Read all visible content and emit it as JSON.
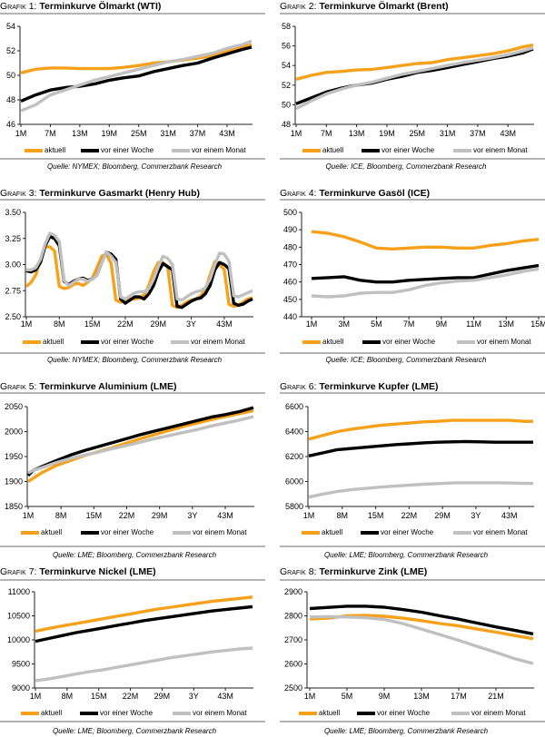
{
  "chart_data": [
    {
      "type": "line",
      "figure_label": "Grafik",
      "figure_number": "1:",
      "title": "Terminkurve Ölmarkt (WTI)",
      "source": "Quelle: NYMEX; Bloomberg, Commerzbank Research",
      "xlabel": "",
      "ylabel": "",
      "grid": false,
      "legend": "bottom",
      "ylim": [
        46,
        54
      ],
      "yticks": [
        "46",
        "48",
        "50",
        "52",
        "54"
      ],
      "x_range": [
        1,
        48
      ],
      "xticks": [
        "1M",
        "7M",
        "13M",
        "19M",
        "25M",
        "31M",
        "37M",
        "43M"
      ],
      "xtick_positions": [
        1,
        7,
        13,
        19,
        25,
        31,
        37,
        43
      ],
      "x": [
        1,
        4,
        7,
        10,
        13,
        16,
        19,
        22,
        25,
        28,
        31,
        34,
        37,
        40,
        43,
        46,
        48
      ],
      "series": [
        {
          "name": "aktuell",
          "color": "#f7a11a",
          "values": [
            50.2,
            50.5,
            50.6,
            50.6,
            50.55,
            50.55,
            50.55,
            50.65,
            50.8,
            51.0,
            51.1,
            51.25,
            51.4,
            51.6,
            51.95,
            52.3,
            52.5
          ]
        },
        {
          "name": "vor einer Woche",
          "color": "#000000",
          "values": [
            47.9,
            48.4,
            48.8,
            49.0,
            49.1,
            49.3,
            49.6,
            49.8,
            49.95,
            50.3,
            50.55,
            50.8,
            51.0,
            51.4,
            51.75,
            52.1,
            52.3
          ]
        },
        {
          "name": "vor einem Monat",
          "color": "#c0c0c0",
          "values": [
            47.1,
            47.6,
            48.4,
            48.8,
            49.2,
            49.6,
            49.9,
            50.2,
            50.5,
            50.8,
            51.1,
            51.3,
            51.55,
            51.8,
            52.2,
            52.5,
            52.8
          ]
        }
      ]
    },
    {
      "type": "line",
      "figure_label": "Grafik",
      "figure_number": "2:",
      "title": "Terminkurve Ölmarkt (Brent)",
      "source": "Quelle: ICE, Bloomberg, Commerzbank Research",
      "xlabel": "",
      "ylabel": "",
      "grid": false,
      "legend": "bottom",
      "ylim": [
        48,
        58
      ],
      "yticks": [
        "48",
        "50",
        "52",
        "54",
        "56",
        "58"
      ],
      "x_range": [
        1,
        48
      ],
      "xticks": [
        "1M",
        "7M",
        "13M",
        "19M",
        "25M",
        "31M",
        "37M",
        "43M"
      ],
      "xtick_positions": [
        1,
        7,
        13,
        19,
        25,
        31,
        37,
        43
      ],
      "x": [
        1,
        4,
        7,
        10,
        13,
        16,
        19,
        22,
        25,
        28,
        31,
        34,
        37,
        40,
        43,
        46,
        48
      ],
      "series": [
        {
          "name": "aktuell",
          "color": "#f7a11a",
          "values": [
            52.6,
            53.0,
            53.3,
            53.4,
            53.55,
            53.6,
            53.8,
            54.0,
            54.2,
            54.3,
            54.6,
            54.8,
            55.0,
            55.2,
            55.5,
            55.9,
            56.1
          ]
        },
        {
          "name": "vor einer Woche",
          "color": "#000000",
          "values": [
            50.1,
            50.7,
            51.3,
            51.7,
            52.0,
            52.2,
            52.6,
            52.9,
            53.3,
            53.5,
            53.8,
            54.1,
            54.4,
            54.7,
            54.95,
            55.3,
            55.7
          ]
        },
        {
          "name": "vor einem Monat",
          "color": "#c0c0c0",
          "values": [
            49.6,
            50.4,
            51.1,
            51.6,
            52.0,
            52.3,
            52.7,
            53.1,
            53.4,
            53.7,
            54.0,
            54.3,
            54.55,
            54.8,
            55.1,
            55.5,
            55.8
          ]
        }
      ]
    },
    {
      "type": "line",
      "figure_label": "Grafik",
      "figure_number": "3:",
      "title": "Terminkurve Gasmarkt (Henry Hub)",
      "source": "Quelle: NYMEX; Bloomberg, Commerzbank Research",
      "xlabel": "",
      "ylabel": "",
      "grid": false,
      "legend": "bottom",
      "ylim": [
        2.5,
        3.5
      ],
      "yticks": [
        "2.50",
        "2.75",
        "3.00",
        "3.25",
        "3.50"
      ],
      "x_range": [
        1,
        49
      ],
      "xticks": [
        "1M",
        "8M",
        "15M",
        "22M",
        "29M",
        "3Y",
        "43M"
      ],
      "xtick_positions": [
        1,
        8,
        15,
        22,
        29,
        36,
        43
      ],
      "x": [
        1,
        2,
        3,
        4,
        5,
        6,
        7,
        8,
        9,
        10,
        11,
        12,
        13,
        14,
        15,
        16,
        17,
        18,
        19,
        20,
        21,
        22,
        23,
        24,
        25,
        26,
        27,
        28,
        29,
        30,
        31,
        32,
        33,
        34,
        35,
        36,
        37,
        38,
        39,
        40,
        41,
        42,
        43,
        44,
        45,
        46,
        47,
        48,
        49
      ],
      "series": [
        {
          "name": "aktuell",
          "color": "#f7a11a",
          "values": [
            2.79,
            2.83,
            2.9,
            3.05,
            3.17,
            3.17,
            3.13,
            2.79,
            2.77,
            2.78,
            2.81,
            2.82,
            2.8,
            2.83,
            2.87,
            2.97,
            3.08,
            3.1,
            3.01,
            2.66,
            2.64,
            2.65,
            2.67,
            2.67,
            2.68,
            2.71,
            2.8,
            2.93,
            3.02,
            3.02,
            2.98,
            2.61,
            2.59,
            2.61,
            2.64,
            2.66,
            2.67,
            2.7,
            2.76,
            2.9,
            3.03,
            3.0,
            2.95,
            2.62,
            2.6,
            2.61,
            2.64,
            2.67,
            2.68
          ]
        },
        {
          "name": "vor einer Woche",
          "color": "#000000",
          "values": [
            2.94,
            2.93,
            2.95,
            3.02,
            3.18,
            3.27,
            3.25,
            3.18,
            2.84,
            2.81,
            2.84,
            2.86,
            2.87,
            2.85,
            2.86,
            2.9,
            3.02,
            3.12,
            3.1,
            3.05,
            2.67,
            2.63,
            2.66,
            2.69,
            2.69,
            2.67,
            2.72,
            2.8,
            2.93,
            3.01,
            2.98,
            2.95,
            2.6,
            2.59,
            2.62,
            2.65,
            2.67,
            2.68,
            2.72,
            2.8,
            2.95,
            3.02,
            3.0,
            2.96,
            2.63,
            2.61,
            2.62,
            2.65,
            2.67
          ]
        },
        {
          "name": "vor einem Monat",
          "color": "#c0c0c0",
          "values": [
            2.95,
            2.95,
            2.97,
            3.05,
            3.2,
            3.3,
            3.28,
            3.22,
            2.85,
            2.8,
            2.83,
            2.86,
            2.86,
            2.84,
            2.86,
            2.9,
            3.02,
            3.12,
            3.08,
            3.02,
            2.69,
            2.67,
            2.7,
            2.73,
            2.74,
            2.74,
            2.77,
            2.86,
            2.98,
            3.08,
            3.06,
            3.0,
            2.67,
            2.66,
            2.69,
            2.72,
            2.74,
            2.75,
            2.78,
            2.86,
            3.0,
            3.11,
            3.1,
            3.03,
            2.7,
            2.69,
            2.71,
            2.73,
            2.75
          ]
        }
      ]
    },
    {
      "type": "line",
      "figure_label": "Grafik",
      "figure_number": "4:",
      "title": "Terminkurve Gasöl (ICE)",
      "source": "Quelle: ICE; Bloomberg, Commerzbank Research",
      "xlabel": "",
      "ylabel": "",
      "grid": false,
      "legend": "bottom",
      "ylim": [
        440,
        500
      ],
      "yticks": [
        "440",
        "450",
        "460",
        "470",
        "480",
        "490",
        "500"
      ],
      "x_range": [
        1,
        15
      ],
      "xticks": [
        "1M",
        "3M",
        "5M",
        "7M",
        "9M",
        "11M",
        "13M",
        "15M"
      ],
      "xtick_positions": [
        1,
        3,
        5,
        7,
        9,
        11,
        13,
        15
      ],
      "x": [
        1,
        2,
        3,
        4,
        5,
        6,
        7,
        8,
        9,
        10,
        11,
        12,
        13,
        14,
        15
      ],
      "series": [
        {
          "name": "aktuell",
          "color": "#f7a11a",
          "values": [
            489,
            488,
            486,
            483,
            479.5,
            479,
            479.5,
            480,
            480,
            479.5,
            479.5,
            481,
            482,
            483.5,
            484.5
          ]
        },
        {
          "name": "vor einer Woche",
          "color": "#000000",
          "values": [
            462,
            462.5,
            463,
            461,
            460,
            460,
            461,
            461.5,
            462,
            462.5,
            462.5,
            464.5,
            466.5,
            468,
            469.5
          ]
        },
        {
          "name": "vor einem Monat",
          "color": "#c0c0c0",
          "values": [
            452,
            451.5,
            452,
            453.5,
            454,
            454,
            455.5,
            458,
            459.5,
            460.5,
            461,
            462.5,
            464,
            466,
            467.5
          ]
        }
      ]
    },
    {
      "type": "line",
      "figure_label": "Grafik",
      "figure_number": "5:",
      "title": "Terminkurve Aluminium (LME)",
      "source": "Quelle: LME; Bloomberg, Commerzbank Research",
      "xlabel": "",
      "ylabel": "",
      "grid": false,
      "legend": "bottom",
      "ylim": [
        1850,
        2050
      ],
      "yticks": [
        "1850",
        "1900",
        "1950",
        "2000",
        "2050"
      ],
      "x_range": [
        1,
        49
      ],
      "xticks": [
        "1M",
        "8M",
        "15M",
        "22M",
        "29M",
        "3Y",
        "43M"
      ],
      "xtick_positions": [
        1,
        8,
        15,
        22,
        29,
        36,
        43
      ],
      "x": [
        1,
        2,
        4,
        7,
        10,
        13,
        16,
        19,
        22,
        25,
        28,
        31,
        34,
        37,
        40,
        43,
        46,
        49
      ],
      "series": [
        {
          "name": "aktuell",
          "color": "#f7a11a",
          "values": [
            1900,
            1906,
            1918,
            1932,
            1942,
            1952,
            1960,
            1968,
            1977,
            1986,
            1994,
            2002,
            2010,
            2017,
            2024,
            2030,
            2036,
            2042
          ]
        },
        {
          "name": "vor einer Woche",
          "color": "#000000",
          "values": [
            1912,
            1922,
            1930,
            1942,
            1953,
            1962,
            1970,
            1978,
            1986,
            1994,
            2001,
            2008,
            2015,
            2022,
            2029,
            2034,
            2040,
            2048
          ]
        },
        {
          "name": "vor einem Monat",
          "color": "#c0c0c0",
          "values": [
            1917,
            1922,
            1928,
            1938,
            1946,
            1953,
            1959,
            1966,
            1972,
            1979,
            1986,
            1992,
            1998,
            2004,
            2011,
            2017,
            2023,
            2030
          ]
        }
      ]
    },
    {
      "type": "line",
      "figure_label": "Grafik",
      "figure_number": "6:",
      "title": "Terminkurve Kupfer (LME)",
      "source": "Quelle: LME; Bloomberg, Commerzbank Research",
      "xlabel": "",
      "ylabel": "",
      "grid": false,
      "legend": "bottom",
      "ylim": [
        5800,
        6600
      ],
      "yticks": [
        "5800",
        "6000",
        "6200",
        "6400",
        "6600"
      ],
      "x_range": [
        1,
        48
      ],
      "xticks": [
        "1M",
        "8M",
        "15M",
        "22M",
        "29M",
        "3Y",
        "43M"
      ],
      "xtick_positions": [
        1,
        8,
        15,
        22,
        29,
        36,
        43
      ],
      "x": [
        1,
        4,
        7,
        10,
        13,
        16,
        19,
        22,
        25,
        28,
        31,
        34,
        37,
        40,
        43,
        46,
        48
      ],
      "series": [
        {
          "name": "aktuell",
          "color": "#f7a11a",
          "values": [
            6340,
            6370,
            6400,
            6420,
            6435,
            6450,
            6460,
            6468,
            6478,
            6482,
            6490,
            6490,
            6490,
            6490,
            6490,
            6482,
            6482
          ]
        },
        {
          "name": "vor einer Woche",
          "color": "#000000",
          "values": [
            6205,
            6230,
            6255,
            6265,
            6275,
            6285,
            6295,
            6302,
            6310,
            6315,
            6318,
            6320,
            6318,
            6315,
            6315,
            6315,
            6315
          ]
        },
        {
          "name": "vor einem Monat",
          "color": "#c0c0c0",
          "values": [
            5875,
            5900,
            5920,
            5935,
            5945,
            5955,
            5963,
            5970,
            5978,
            5983,
            5988,
            5990,
            5990,
            5990,
            5988,
            5985,
            5985
          ]
        }
      ]
    },
    {
      "type": "line",
      "figure_label": "Grafik",
      "figure_number": "7:",
      "title": "Terminkurve Nickel (LME)",
      "source": "Quelle: LME; Bloomberg, Commerzbank Research",
      "xlabel": "",
      "ylabel": "",
      "grid": false,
      "legend": "bottom",
      "ylim": [
        9000,
        11000
      ],
      "yticks": [
        "9000",
        "9500",
        "10000",
        "10500",
        "11000"
      ],
      "x_range": [
        1,
        49
      ],
      "xticks": [
        "1M",
        "8M",
        "15M",
        "22M",
        "29M",
        "3Y",
        "43M"
      ],
      "xtick_positions": [
        1,
        8,
        15,
        22,
        29,
        36,
        43
      ],
      "x": [
        1,
        4,
        7,
        10,
        13,
        16,
        19,
        22,
        25,
        28,
        31,
        34,
        37,
        40,
        43,
        46,
        49
      ],
      "series": [
        {
          "name": "aktuell",
          "color": "#f7a11a",
          "values": [
            10180,
            10240,
            10290,
            10340,
            10390,
            10440,
            10490,
            10540,
            10590,
            10640,
            10680,
            10720,
            10760,
            10800,
            10830,
            10860,
            10890
          ]
        },
        {
          "name": "vor einer Woche",
          "color": "#000000",
          "values": [
            9970,
            10030,
            10090,
            10150,
            10200,
            10250,
            10300,
            10350,
            10400,
            10440,
            10480,
            10520,
            10560,
            10600,
            10630,
            10660,
            10690
          ]
        },
        {
          "name": "vor einem Monat",
          "color": "#c0c0c0",
          "values": [
            9150,
            9190,
            9240,
            9290,
            9340,
            9380,
            9430,
            9480,
            9530,
            9580,
            9630,
            9670,
            9710,
            9750,
            9780,
            9810,
            9830
          ]
        }
      ]
    },
    {
      "type": "line",
      "figure_label": "Grafik",
      "figure_number": "8:",
      "title": "Terminkurve Zink (LME)",
      "source": "Quelle: LME; Bloomberg, Commerzbank Research",
      "xlabel": "",
      "ylabel": "",
      "grid": false,
      "legend": "bottom",
      "ylim": [
        2500,
        2900
      ],
      "yticks": [
        "2500",
        "2600",
        "2700",
        "2800",
        "2900"
      ],
      "x_range": [
        1,
        25
      ],
      "xticks": [
        "1M",
        "5M",
        "9M",
        "13M",
        "17M",
        "21M"
      ],
      "xtick_positions": [
        1,
        5,
        9,
        13,
        17,
        21
      ],
      "x": [
        1,
        3,
        5,
        7,
        9,
        11,
        13,
        15,
        17,
        19,
        21,
        23,
        25
      ],
      "series": [
        {
          "name": "aktuell",
          "color": "#f7a11a",
          "values": [
            2787,
            2790,
            2800,
            2802,
            2798,
            2790,
            2780,
            2768,
            2758,
            2745,
            2732,
            2718,
            2705
          ]
        },
        {
          "name": "vor einer Woche",
          "color": "#000000",
          "values": [
            2830,
            2835,
            2840,
            2840,
            2836,
            2826,
            2815,
            2800,
            2786,
            2770,
            2754,
            2740,
            2725
          ]
        },
        {
          "name": "vor einem Monat",
          "color": "#c0c0c0",
          "values": [
            2795,
            2797,
            2795,
            2792,
            2785,
            2768,
            2745,
            2722,
            2698,
            2673,
            2648,
            2622,
            2602
          ]
        }
      ]
    }
  ]
}
